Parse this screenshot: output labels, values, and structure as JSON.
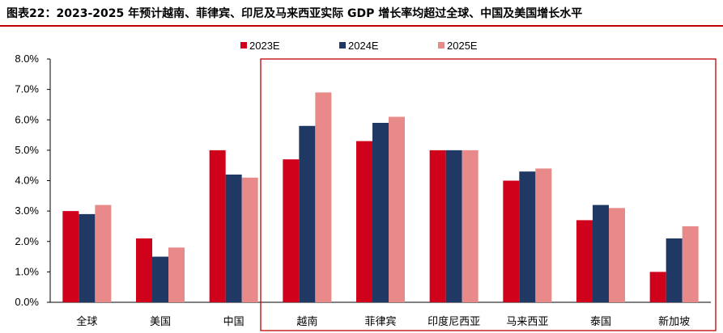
{
  "title": "图表22：2023-2025 年预计越南、菲律宾、印尼及马来西亚实际 GDP 增长率均超过全球、中国及美国增长水平",
  "chart_data": {
    "type": "bar",
    "categories": [
      "全球",
      "美国",
      "中国",
      "越南",
      "菲律宾",
      "印度尼西亚",
      "马来西亚",
      "泰国",
      "新加坡"
    ],
    "series": [
      {
        "name": "2023E",
        "color": "#d0021b",
        "values": [
          3.0,
          2.1,
          5.0,
          4.7,
          5.3,
          5.0,
          4.0,
          2.7,
          1.0
        ]
      },
      {
        "name": "2024E",
        "color": "#1f3864",
        "values": [
          2.9,
          1.5,
          4.2,
          5.8,
          5.9,
          5.0,
          4.3,
          3.2,
          2.1
        ]
      },
      {
        "name": "2025E",
        "color": "#e88a8a",
        "values": [
          3.2,
          1.8,
          4.1,
          6.9,
          6.1,
          5.0,
          4.4,
          3.1,
          2.5
        ]
      }
    ],
    "ylim": [
      0,
      8
    ],
    "yticks": [
      "0.0%",
      "1.0%",
      "2.0%",
      "3.0%",
      "4.0%",
      "5.0%",
      "6.0%",
      "7.0%",
      "8.0%"
    ],
    "legend": "top-center",
    "highlight_box_categories": [
      "越南",
      "菲律宾",
      "印度尼西亚",
      "马来西亚",
      "泰国",
      "新加坡"
    ],
    "highlight_box_color": "#c00000"
  }
}
